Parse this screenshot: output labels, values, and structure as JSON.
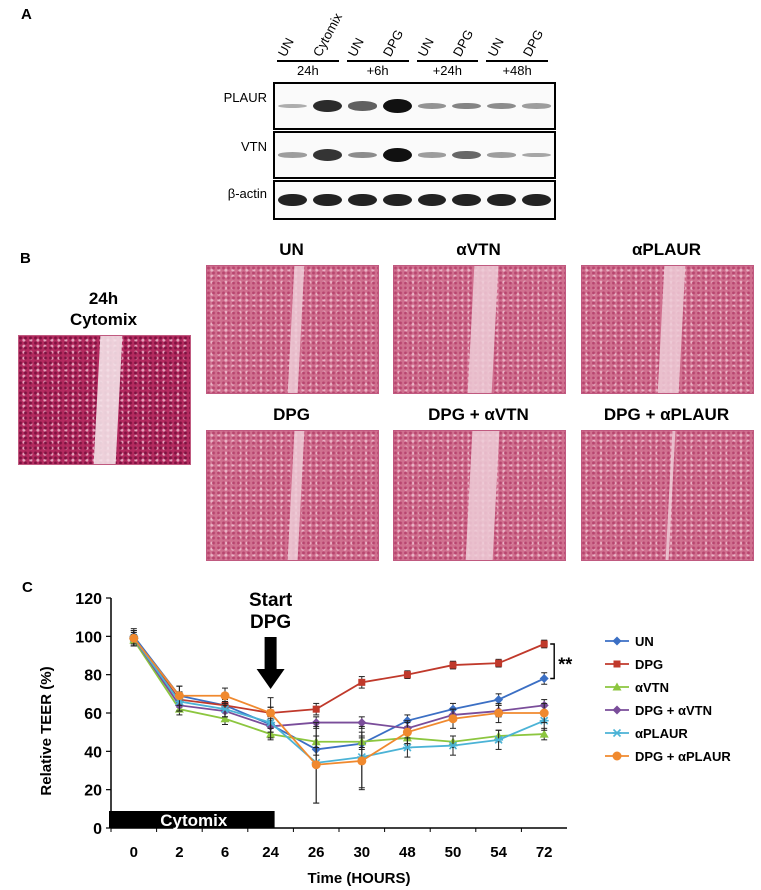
{
  "panel_a": {
    "letter": "A",
    "lanes": [
      "UN",
      "Cytomix",
      "UN",
      "DPG",
      "UN",
      "DPG",
      "UN",
      "DPG"
    ],
    "time_groups": [
      "24h",
      "+6h",
      "+24h",
      "+48h"
    ],
    "rows": [
      {
        "label": "PLAUR",
        "intensities": [
          0.1,
          0.85,
          0.55,
          1.0,
          0.25,
          0.35,
          0.3,
          0.2
        ]
      },
      {
        "label": "VTN",
        "intensities": [
          0.2,
          0.8,
          0.3,
          1.0,
          0.2,
          0.5,
          0.2,
          0.15
        ]
      },
      {
        "label": "β-actin",
        "intensities": [
          0.9,
          0.9,
          0.9,
          0.9,
          0.9,
          0.9,
          0.9,
          0.9
        ]
      }
    ]
  },
  "panel_b": {
    "letter": "B",
    "images": [
      {
        "title": "24h Cytomix",
        "title_line1": "24h",
        "title_line2": "Cytomix"
      },
      {
        "title": "UN"
      },
      {
        "title": "αVTN"
      },
      {
        "title": "αPLAUR"
      },
      {
        "title": "DPG"
      },
      {
        "title": "DPG + αVTN"
      },
      {
        "title": "DPG + αPLAUR"
      }
    ]
  },
  "chart_data": {
    "panel_letter": "C",
    "type": "line",
    "title": "",
    "xlabel": "Time (HOURS)",
    "ylabel": "Relative TEER (%)",
    "x_categories": [
      "0",
      "2",
      "6",
      "24",
      "26",
      "30",
      "48",
      "50",
      "54",
      "72"
    ],
    "ylim": [
      0,
      120
    ],
    "yticks": [
      0,
      20,
      40,
      60,
      80,
      100,
      120
    ],
    "annotation_arrow": {
      "line1": "Start",
      "line2": "DPG",
      "at_category": "24"
    },
    "cytomix_bar": {
      "label": "Cytomix",
      "from_category": "0",
      "to_category": "24"
    },
    "significance": "**",
    "legend_position": "right",
    "series": [
      {
        "name": "UN",
        "color": "#3b6fc4",
        "marker": "diamond",
        "values": [
          100,
          69,
          64,
          54,
          41,
          44,
          56,
          62,
          67,
          78
        ],
        "errors": [
          4,
          5,
          4,
          4,
          3,
          3,
          3,
          3,
          3,
          3
        ]
      },
      {
        "name": "DPG",
        "color": "#c0392b",
        "marker": "square",
        "values": [
          99,
          67,
          64,
          60,
          62,
          76,
          80,
          85,
          86,
          96
        ],
        "errors": [
          4,
          4,
          3,
          3,
          3,
          3,
          2,
          2,
          2,
          2
        ]
      },
      {
        "name": "αVTN",
        "color": "#8cc63f",
        "marker": "triangle",
        "values": [
          98,
          62,
          57,
          49,
          45,
          45,
          47,
          45,
          48,
          49
        ],
        "errors": [
          3,
          3,
          3,
          3,
          3,
          3,
          3,
          3,
          3,
          3
        ]
      },
      {
        "name": "DPG + αVTN",
        "color": "#7a4d9a",
        "marker": "diamond",
        "values": [
          99,
          64,
          61,
          53,
          55,
          55,
          52,
          59,
          61,
          64
        ],
        "errors": [
          3,
          3,
          3,
          3,
          3,
          3,
          3,
          3,
          3,
          3
        ]
      },
      {
        "name": "αPLAUR",
        "color": "#4bb3d6",
        "marker": "star",
        "values": [
          99,
          66,
          62,
          55,
          34,
          37,
          42,
          43,
          46,
          56
        ],
        "errors": [
          4,
          5,
          4,
          8,
          21,
          16,
          5,
          5,
          5,
          5
        ]
      },
      {
        "name": "DPG + αPLAUR",
        "color": "#f0892e",
        "marker": "circle",
        "values": [
          99,
          69,
          69,
          60,
          33,
          35,
          50,
          57,
          60,
          60
        ],
        "errors": [
          4,
          5,
          4,
          8,
          20,
          15,
          6,
          5,
          5,
          5
        ]
      }
    ]
  }
}
